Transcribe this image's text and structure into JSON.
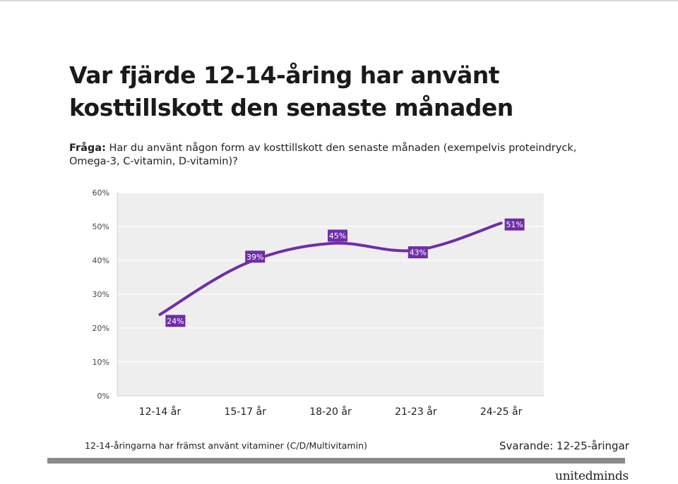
{
  "title": "Var fjärde 12-14-åring har använt kosttillskott den senaste månaden",
  "question": {
    "label": "Fråga:",
    "text": " Har du använt någon form av kosttillskott den senaste månaden (exempelvis proteindryck, Omega-3, C-vitamin, D-vitamin)?"
  },
  "footnote": "12-14-åringarna har främst använt vitaminer (C/D/Multivitamin)",
  "respondents": "Svarande: 12-25-åringar",
  "logo": "unitedminds",
  "colors": {
    "line": "#6f2da8",
    "label_bg": "#6f2da8",
    "plot_bg": "#eeeeee",
    "grid": "#ffffff",
    "bottom_bar": "#8a8a8a"
  },
  "chart_data": {
    "type": "line",
    "categories": [
      "12-14 år",
      "15-17 år",
      "18-20 år",
      "21-23 år",
      "24-25 år"
    ],
    "series": [
      {
        "values": [
          24,
          39,
          45,
          43,
          51
        ],
        "data_labels": [
          "24%",
          "39%",
          "45%",
          "43%",
          "51%"
        ]
      }
    ],
    "ylim": [
      0,
      60
    ],
    "yticks": [
      0,
      10,
      20,
      30,
      40,
      50,
      60
    ],
    "ytick_labels": [
      "0%",
      "10%",
      "20%",
      "30%",
      "40%",
      "50%",
      "60%"
    ],
    "smooth": true,
    "grid": true
  }
}
